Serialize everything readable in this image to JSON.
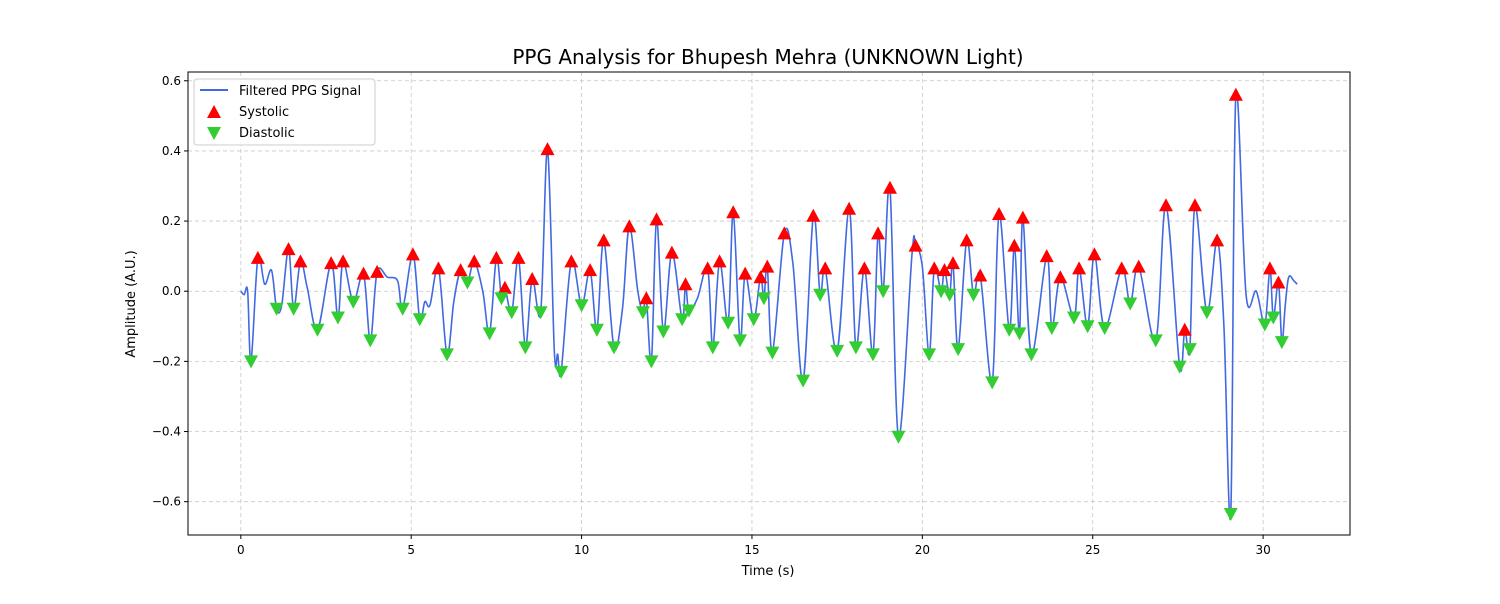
{
  "chart_data": {
    "type": "line",
    "title": "PPG Analysis for Bhupesh Mehra (UNKNOWN Light)",
    "xlabel": "Time (s)",
    "ylabel": "Amplitude (A.U.)",
    "xlim": [
      -1.55,
      32.55
    ],
    "ylim": [
      -0.695,
      0.625
    ],
    "xticks": [
      0,
      5,
      10,
      15,
      20,
      25,
      30
    ],
    "yticks": [
      -0.6,
      -0.4,
      -0.2,
      0.0,
      0.2,
      0.4,
      0.6
    ],
    "grid": true,
    "legend_position": "top-left",
    "colors": {
      "signal": "#4169E1",
      "systolic": "#FF0000",
      "diastolic": "#32CD32"
    },
    "series": [
      {
        "name": "Filtered PPG Signal",
        "kind": "line",
        "points": [
          [
            0.0,
            0.0
          ],
          [
            0.1,
            -0.01
          ],
          [
            0.2,
            0.0
          ],
          [
            0.3,
            -0.2
          ],
          [
            0.5,
            0.095
          ],
          [
            0.7,
            0.02
          ],
          [
            0.9,
            0.06
          ],
          [
            1.05,
            -0.05
          ],
          [
            1.2,
            -0.04
          ],
          [
            1.4,
            0.12
          ],
          [
            1.55,
            -0.05
          ],
          [
            1.75,
            0.085
          ],
          [
            1.95,
            0.01
          ],
          [
            2.25,
            -0.11
          ],
          [
            2.65,
            0.08
          ],
          [
            2.85,
            -0.075
          ],
          [
            3.0,
            0.085
          ],
          [
            3.3,
            -0.03
          ],
          [
            3.6,
            0.05
          ],
          [
            3.8,
            -0.14
          ],
          [
            4.0,
            0.055
          ],
          [
            4.3,
            0.04
          ],
          [
            4.6,
            0.03
          ],
          [
            4.75,
            -0.05
          ],
          [
            5.05,
            0.105
          ],
          [
            5.25,
            -0.08
          ],
          [
            5.4,
            -0.03
          ],
          [
            5.55,
            -0.04
          ],
          [
            5.8,
            0.065
          ],
          [
            6.05,
            -0.18
          ],
          [
            6.25,
            -0.03
          ],
          [
            6.45,
            0.06
          ],
          [
            6.65,
            0.025
          ],
          [
            6.85,
            0.085
          ],
          [
            7.1,
            0.0
          ],
          [
            7.3,
            -0.12
          ],
          [
            7.5,
            0.095
          ],
          [
            7.65,
            -0.02
          ],
          [
            7.75,
            0.01
          ],
          [
            7.95,
            -0.06
          ],
          [
            8.15,
            0.095
          ],
          [
            8.35,
            -0.16
          ],
          [
            8.55,
            0.035
          ],
          [
            8.8,
            -0.06
          ],
          [
            9.0,
            0.405
          ],
          [
            9.2,
            -0.17
          ],
          [
            9.3,
            -0.18
          ],
          [
            9.4,
            -0.23
          ],
          [
            9.7,
            0.085
          ],
          [
            10.0,
            -0.04
          ],
          [
            10.25,
            0.06
          ],
          [
            10.45,
            -0.11
          ],
          [
            10.65,
            0.145
          ],
          [
            10.95,
            -0.16
          ],
          [
            11.2,
            -0.05
          ],
          [
            11.4,
            0.185
          ],
          [
            11.65,
            0.0
          ],
          [
            11.8,
            -0.06
          ],
          [
            11.9,
            -0.02
          ],
          [
            12.05,
            -0.2
          ],
          [
            12.2,
            0.205
          ],
          [
            12.4,
            -0.115
          ],
          [
            12.65,
            0.11
          ],
          [
            12.95,
            -0.08
          ],
          [
            13.05,
            0.02
          ],
          [
            13.15,
            -0.055
          ],
          [
            13.4,
            -0.02
          ],
          [
            13.7,
            0.065
          ],
          [
            13.85,
            -0.16
          ],
          [
            14.05,
            0.085
          ],
          [
            14.3,
            -0.09
          ],
          [
            14.45,
            0.225
          ],
          [
            14.65,
            -0.14
          ],
          [
            14.8,
            0.05
          ],
          [
            15.05,
            -0.08
          ],
          [
            15.25,
            0.04
          ],
          [
            15.35,
            -0.02
          ],
          [
            15.45,
            0.07
          ],
          [
            15.6,
            -0.175
          ],
          [
            15.95,
            0.165
          ],
          [
            16.2,
            0.08
          ],
          [
            16.5,
            -0.255
          ],
          [
            16.8,
            0.215
          ],
          [
            17.0,
            -0.01
          ],
          [
            17.15,
            0.065
          ],
          [
            17.5,
            -0.17
          ],
          [
            17.85,
            0.235
          ],
          [
            18.05,
            -0.16
          ],
          [
            18.3,
            0.065
          ],
          [
            18.55,
            -0.18
          ],
          [
            18.7,
            0.165
          ],
          [
            18.85,
            0.0
          ],
          [
            19.05,
            0.295
          ],
          [
            19.3,
            -0.415
          ],
          [
            19.7,
            0.11
          ],
          [
            19.8,
            0.13
          ],
          [
            20.0,
            0.07
          ],
          [
            20.2,
            -0.18
          ],
          [
            20.35,
            0.065
          ],
          [
            20.55,
            0.0
          ],
          [
            20.65,
            0.06
          ],
          [
            20.8,
            -0.01
          ],
          [
            20.9,
            0.08
          ],
          [
            21.05,
            -0.165
          ],
          [
            21.3,
            0.145
          ],
          [
            21.5,
            -0.01
          ],
          [
            21.7,
            0.045
          ],
          [
            22.05,
            -0.26
          ],
          [
            22.25,
            0.22
          ],
          [
            22.55,
            -0.11
          ],
          [
            22.7,
            0.13
          ],
          [
            22.85,
            -0.12
          ],
          [
            22.95,
            0.21
          ],
          [
            23.2,
            -0.18
          ],
          [
            23.65,
            0.1
          ],
          [
            23.8,
            -0.105
          ],
          [
            24.05,
            0.04
          ],
          [
            24.45,
            -0.075
          ],
          [
            24.6,
            0.065
          ],
          [
            24.85,
            -0.1
          ],
          [
            25.05,
            0.105
          ],
          [
            25.35,
            -0.105
          ],
          [
            25.85,
            0.065
          ],
          [
            26.1,
            -0.035
          ],
          [
            26.35,
            0.07
          ],
          [
            26.85,
            -0.14
          ],
          [
            27.15,
            0.245
          ],
          [
            27.55,
            -0.215
          ],
          [
            27.7,
            -0.11
          ],
          [
            27.85,
            -0.165
          ],
          [
            28.0,
            0.245
          ],
          [
            28.35,
            -0.06
          ],
          [
            28.65,
            0.145
          ],
          [
            28.85,
            -0.1
          ],
          [
            29.05,
            -0.635
          ],
          [
            29.2,
            0.56
          ],
          [
            29.5,
            -0.01
          ],
          [
            29.8,
            0.0
          ],
          [
            30.05,
            -0.095
          ],
          [
            30.2,
            0.065
          ],
          [
            30.3,
            -0.075
          ],
          [
            30.45,
            0.025
          ],
          [
            30.55,
            -0.145
          ],
          [
            30.65,
            -0.04
          ],
          [
            30.75,
            0.04
          ],
          [
            30.9,
            0.03
          ],
          [
            31.0,
            0.02
          ]
        ]
      },
      {
        "name": "Systolic",
        "kind": "marker-up",
        "points": [
          [
            0.5,
            0.095
          ],
          [
            1.4,
            0.12
          ],
          [
            1.75,
            0.085
          ],
          [
            2.65,
            0.08
          ],
          [
            3.0,
            0.085
          ],
          [
            3.6,
            0.05
          ],
          [
            4.0,
            0.055
          ],
          [
            5.05,
            0.105
          ],
          [
            5.8,
            0.065
          ],
          [
            6.45,
            0.06
          ],
          [
            6.85,
            0.085
          ],
          [
            7.5,
            0.095
          ],
          [
            7.75,
            0.01
          ],
          [
            8.15,
            0.095
          ],
          [
            8.55,
            0.035
          ],
          [
            9.0,
            0.405
          ],
          [
            9.7,
            0.085
          ],
          [
            10.25,
            0.06
          ],
          [
            10.65,
            0.145
          ],
          [
            11.4,
            0.185
          ],
          [
            11.9,
            -0.02
          ],
          [
            12.2,
            0.205
          ],
          [
            12.65,
            0.11
          ],
          [
            13.05,
            0.02
          ],
          [
            13.7,
            0.065
          ],
          [
            14.05,
            0.085
          ],
          [
            14.45,
            0.225
          ],
          [
            14.8,
            0.05
          ],
          [
            15.25,
            0.04
          ],
          [
            15.45,
            0.07
          ],
          [
            15.95,
            0.165
          ],
          [
            16.8,
            0.215
          ],
          [
            17.15,
            0.065
          ],
          [
            17.85,
            0.235
          ],
          [
            18.3,
            0.065
          ],
          [
            18.7,
            0.165
          ],
          [
            19.05,
            0.295
          ],
          [
            19.8,
            0.13
          ],
          [
            20.35,
            0.065
          ],
          [
            20.65,
            0.06
          ],
          [
            20.9,
            0.08
          ],
          [
            21.3,
            0.145
          ],
          [
            21.7,
            0.045
          ],
          [
            22.25,
            0.22
          ],
          [
            22.7,
            0.13
          ],
          [
            22.95,
            0.21
          ],
          [
            23.65,
            0.1
          ],
          [
            24.05,
            0.04
          ],
          [
            24.6,
            0.065
          ],
          [
            25.05,
            0.105
          ],
          [
            25.85,
            0.065
          ],
          [
            26.35,
            0.07
          ],
          [
            27.15,
            0.245
          ],
          [
            27.7,
            -0.11
          ],
          [
            28.0,
            0.245
          ],
          [
            28.65,
            0.145
          ],
          [
            29.2,
            0.56
          ],
          [
            30.2,
            0.065
          ],
          [
            30.45,
            0.025
          ]
        ]
      },
      {
        "name": "Diastolic",
        "kind": "marker-down",
        "points": [
          [
            0.3,
            -0.2
          ],
          [
            1.05,
            -0.05
          ],
          [
            1.55,
            -0.05
          ],
          [
            2.25,
            -0.11
          ],
          [
            2.85,
            -0.075
          ],
          [
            3.3,
            -0.03
          ],
          [
            3.8,
            -0.14
          ],
          [
            4.75,
            -0.05
          ],
          [
            5.25,
            -0.08
          ],
          [
            6.05,
            -0.18
          ],
          [
            6.65,
            0.025
          ],
          [
            7.3,
            -0.12
          ],
          [
            7.65,
            -0.02
          ],
          [
            7.95,
            -0.06
          ],
          [
            8.35,
            -0.16
          ],
          [
            8.8,
            -0.06
          ],
          [
            9.4,
            -0.23
          ],
          [
            10.0,
            -0.04
          ],
          [
            10.45,
            -0.11
          ],
          [
            10.95,
            -0.16
          ],
          [
            11.8,
            -0.06
          ],
          [
            12.05,
            -0.2
          ],
          [
            12.4,
            -0.115
          ],
          [
            12.95,
            -0.08
          ],
          [
            13.15,
            -0.055
          ],
          [
            13.85,
            -0.16
          ],
          [
            14.3,
            -0.09
          ],
          [
            14.65,
            -0.14
          ],
          [
            15.05,
            -0.08
          ],
          [
            15.35,
            -0.02
          ],
          [
            15.6,
            -0.175
          ],
          [
            16.5,
            -0.255
          ],
          [
            17.0,
            -0.01
          ],
          [
            17.5,
            -0.17
          ],
          [
            18.05,
            -0.16
          ],
          [
            18.55,
            -0.18
          ],
          [
            18.85,
            0.0
          ],
          [
            19.3,
            -0.415
          ],
          [
            20.2,
            -0.18
          ],
          [
            20.55,
            0.0
          ],
          [
            20.8,
            -0.01
          ],
          [
            21.05,
            -0.165
          ],
          [
            21.5,
            -0.01
          ],
          [
            22.05,
            -0.26
          ],
          [
            22.55,
            -0.11
          ],
          [
            22.85,
            -0.12
          ],
          [
            23.2,
            -0.18
          ],
          [
            23.8,
            -0.105
          ],
          [
            24.45,
            -0.075
          ],
          [
            24.85,
            -0.1
          ],
          [
            25.35,
            -0.105
          ],
          [
            26.1,
            -0.035
          ],
          [
            26.85,
            -0.14
          ],
          [
            27.55,
            -0.215
          ],
          [
            27.85,
            -0.165
          ],
          [
            28.35,
            -0.06
          ],
          [
            29.05,
            -0.635
          ],
          [
            30.05,
            -0.095
          ],
          [
            30.3,
            -0.075
          ],
          [
            30.55,
            -0.145
          ]
        ]
      }
    ]
  }
}
